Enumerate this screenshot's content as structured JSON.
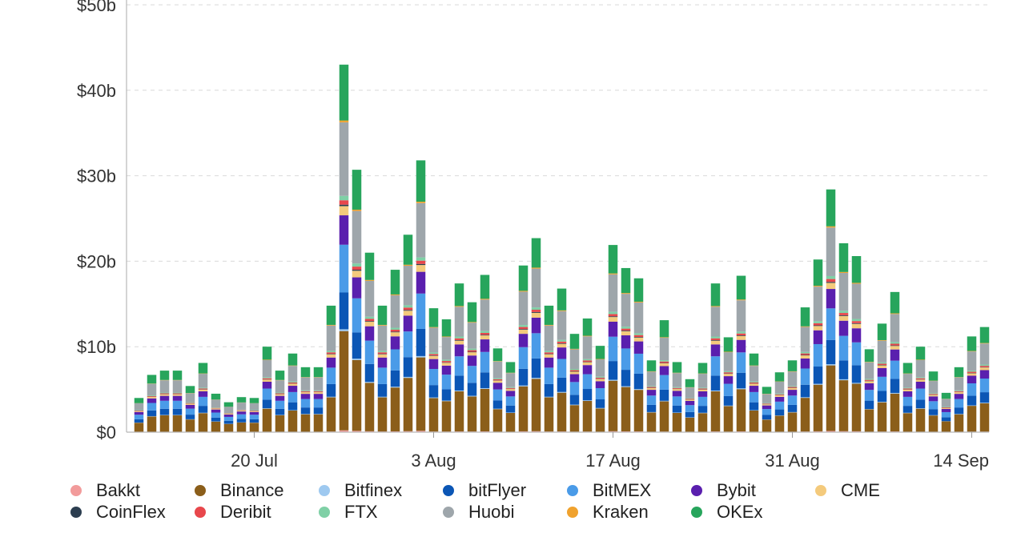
{
  "chart_data": {
    "type": "bar",
    "stacked": true,
    "ylim": [
      0,
      50
    ],
    "y_ticks": [
      {
        "value": 0,
        "label": "$0"
      },
      {
        "value": 10,
        "label": "$10b"
      },
      {
        "value": 20,
        "label": "$20b"
      },
      {
        "value": 30,
        "label": "$30b"
      },
      {
        "value": 40,
        "label": "$40b"
      },
      {
        "value": 50,
        "label": "$50b"
      }
    ],
    "x_ticks": [
      {
        "date": "2020-07-20",
        "label": "20 Jul"
      },
      {
        "date": "2020-08-03",
        "label": "3 Aug"
      },
      {
        "date": "2020-08-17",
        "label": "17 Aug"
      },
      {
        "date": "2020-08-31",
        "label": "31 Aug"
      },
      {
        "date": "2020-09-14",
        "label": "14 Sep"
      }
    ],
    "grid": true,
    "legend_position": "bottom",
    "dates": [
      "2020-07-11",
      "2020-07-12",
      "2020-07-13",
      "2020-07-14",
      "2020-07-15",
      "2020-07-16",
      "2020-07-17",
      "2020-07-18",
      "2020-07-19",
      "2020-07-20",
      "2020-07-21",
      "2020-07-22",
      "2020-07-23",
      "2020-07-24",
      "2020-07-25",
      "2020-07-26",
      "2020-07-27",
      "2020-07-28",
      "2020-07-29",
      "2020-07-30",
      "2020-07-31",
      "2020-08-01",
      "2020-08-02",
      "2020-08-03",
      "2020-08-04",
      "2020-08-05",
      "2020-08-06",
      "2020-08-07",
      "2020-08-08",
      "2020-08-09",
      "2020-08-10",
      "2020-08-11",
      "2020-08-12",
      "2020-08-13",
      "2020-08-14",
      "2020-08-15",
      "2020-08-16",
      "2020-08-17",
      "2020-08-18",
      "2020-08-19",
      "2020-08-20",
      "2020-08-21",
      "2020-08-22",
      "2020-08-23",
      "2020-08-24",
      "2020-08-25",
      "2020-08-26",
      "2020-08-27",
      "2020-08-28",
      "2020-08-29",
      "2020-08-30",
      "2020-08-31",
      "2020-09-01",
      "2020-09-02",
      "2020-09-03",
      "2020-09-04",
      "2020-09-05",
      "2020-09-06",
      "2020-09-07",
      "2020-09-08",
      "2020-09-09",
      "2020-09-10",
      "2020-09-11",
      "2020-09-12",
      "2020-09-13",
      "2020-09-14",
      "2020-09-15"
    ],
    "totals": [
      4.0,
      6.7,
      7.2,
      7.2,
      5.4,
      8.1,
      4.5,
      3.5,
      4.1,
      4.0,
      10.0,
      7.2,
      9.2,
      7.6,
      7.6,
      14.8,
      43.0,
      30.7,
      21.0,
      14.8,
      19.0,
      23.1,
      31.8,
      14.5,
      13.2,
      17.4,
      15.2,
      18.4,
      9.8,
      8.2,
      19.5,
      22.7,
      14.8,
      16.8,
      11.5,
      13.3,
      10.1,
      21.9,
      19.2,
      18.0,
      8.4,
      13.1,
      8.2,
      6.2,
      8.1,
      17.4,
      11.1,
      18.3,
      9.2,
      5.3,
      7.0,
      8.4,
      14.6,
      20.2,
      28.4,
      22.1,
      20.6,
      9.7,
      12.7,
      16.4,
      8.1,
      10.0,
      7.1,
      4.6,
      7.6,
      11.2,
      12.3
    ],
    "series": [
      {
        "name": "Bakkt",
        "color": "#f29b9b",
        "share": 0.005
      },
      {
        "name": "Binance",
        "color": "#8b5e1a",
        "share": 0.27
      },
      {
        "name": "Bitfinex",
        "color": "#9ec9f0",
        "share": 0.005
      },
      {
        "name": "bitFlyer",
        "color": "#0b56b5",
        "share": 0.1
      },
      {
        "name": "BitMEX",
        "color": "#4a9be8",
        "share": 0.13
      },
      {
        "name": "Bybit",
        "color": "#5a1fae",
        "share": 0.08
      },
      {
        "name": "CME",
        "color": "#f4ca7c",
        "share": 0.025
      },
      {
        "name": "CoinFlex",
        "color": "#2c3e50",
        "share": 0.004
      },
      {
        "name": "Deribit",
        "color": "#e8474c",
        "share": 0.012
      },
      {
        "name": "FTX",
        "color": "#7fd0a6",
        "share": 0.012
      },
      {
        "name": "Huobi",
        "color": "#9ea6ab",
        "share": 0.2
      },
      {
        "name": "Kraken",
        "color": "#f0a22e",
        "share": 0.005
      },
      {
        "name": "OKEx",
        "color": "#27a55c",
        "share": 0.152
      }
    ]
  }
}
